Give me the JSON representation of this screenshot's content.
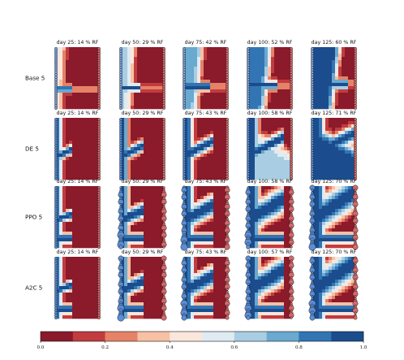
{
  "chart_data": {
    "type": "heatmap",
    "description_rows": [
      "Base 5",
      "DE 5",
      "PPO 5",
      "A2C 5"
    ],
    "rows": [
      {
        "label": "Base 5",
        "titles": [
          "day 25: 14 % RF",
          "day 50: 29 % RF",
          "day 75: 42 % RF",
          "day 100: 52 % RF",
          "day 125: 60 % RF"
        ]
      },
      {
        "label": "DE 5",
        "titles": [
          "day 25: 14 % RF",
          "day 50: 29 % RF",
          "day 75: 43 % RF",
          "day 100: 58 % RF",
          "day 125: 71 % RF"
        ]
      },
      {
        "label": "PPO 5",
        "titles": [
          "day 25: 14 % RF",
          "day 50: 29 % RF",
          "day 75: 43 % RF",
          "day 100: 58 % RF",
          "day 125: 70 % RF"
        ]
      },
      {
        "label": "A2C 5",
        "titles": [
          "day 25: 14 % RF",
          "day 50: 29 % RF",
          "day 75: 43 % RF",
          "day 100: 57 % RF",
          "day 125: 70 % RF"
        ]
      }
    ],
    "days": [
      25,
      50,
      75,
      100,
      125
    ],
    "recovery_factor_percent": [
      [
        14,
        29,
        42,
        52,
        60
      ],
      [
        14,
        29,
        43,
        58,
        71
      ],
      [
        14,
        29,
        43,
        58,
        70
      ],
      [
        14,
        29,
        43,
        57,
        70
      ]
    ],
    "colorbar": {
      "range": [
        0.0,
        1.0
      ],
      "ticks": [
        "0.0",
        "0.2",
        "0.4",
        "0.6",
        "0.8",
        "1.0"
      ],
      "levels": 10,
      "colors": [
        "#8b1a2b",
        "#c23b3e",
        "#e58267",
        "#f8c0a4",
        "#fbe6dc",
        "#dfebf2",
        "#a9cde3",
        "#6aa9d0",
        "#3275b4",
        "#1b4d8e"
      ]
    }
  }
}
